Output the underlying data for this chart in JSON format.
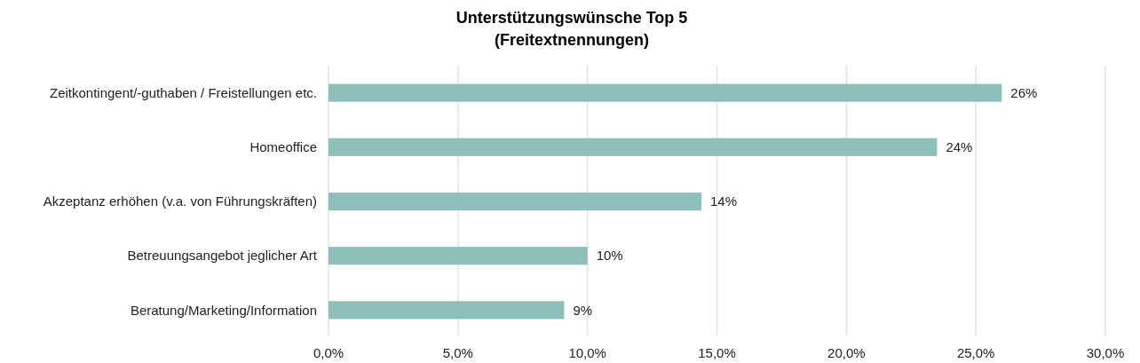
{
  "chart_data": {
    "type": "bar",
    "orientation": "horizontal",
    "title": "Unterstützungswünsche Top 5",
    "subtitle": "(Freitextnennungen)",
    "categories": [
      "Zeitkontingent/-guthaben / Freistellungen etc.",
      "Homeoffice",
      "Akzeptanz erhöhen (v.a. von Führungskräften)",
      "Betreuungsangebot jeglicher Art",
      "Beratung/Marketing/Information"
    ],
    "values": [
      26,
      23.5,
      14.4,
      10,
      9.1
    ],
    "value_labels": [
      "26%",
      "24%",
      "14%",
      "10%",
      "9%"
    ],
    "color": "#8fbfbb",
    "xlim": [
      0,
      30
    ],
    "xticks": [
      {
        "value": 0,
        "label": "0,0%"
      },
      {
        "value": 5,
        "label": "5,0%"
      },
      {
        "value": 10,
        "label": "10,0%"
      },
      {
        "value": 15,
        "label": "15,0%"
      },
      {
        "value": 20,
        "label": "20,0%"
      },
      {
        "value": 25,
        "label": "25,0%"
      },
      {
        "value": 30,
        "label": "30,0%"
      }
    ],
    "grid": "x"
  }
}
